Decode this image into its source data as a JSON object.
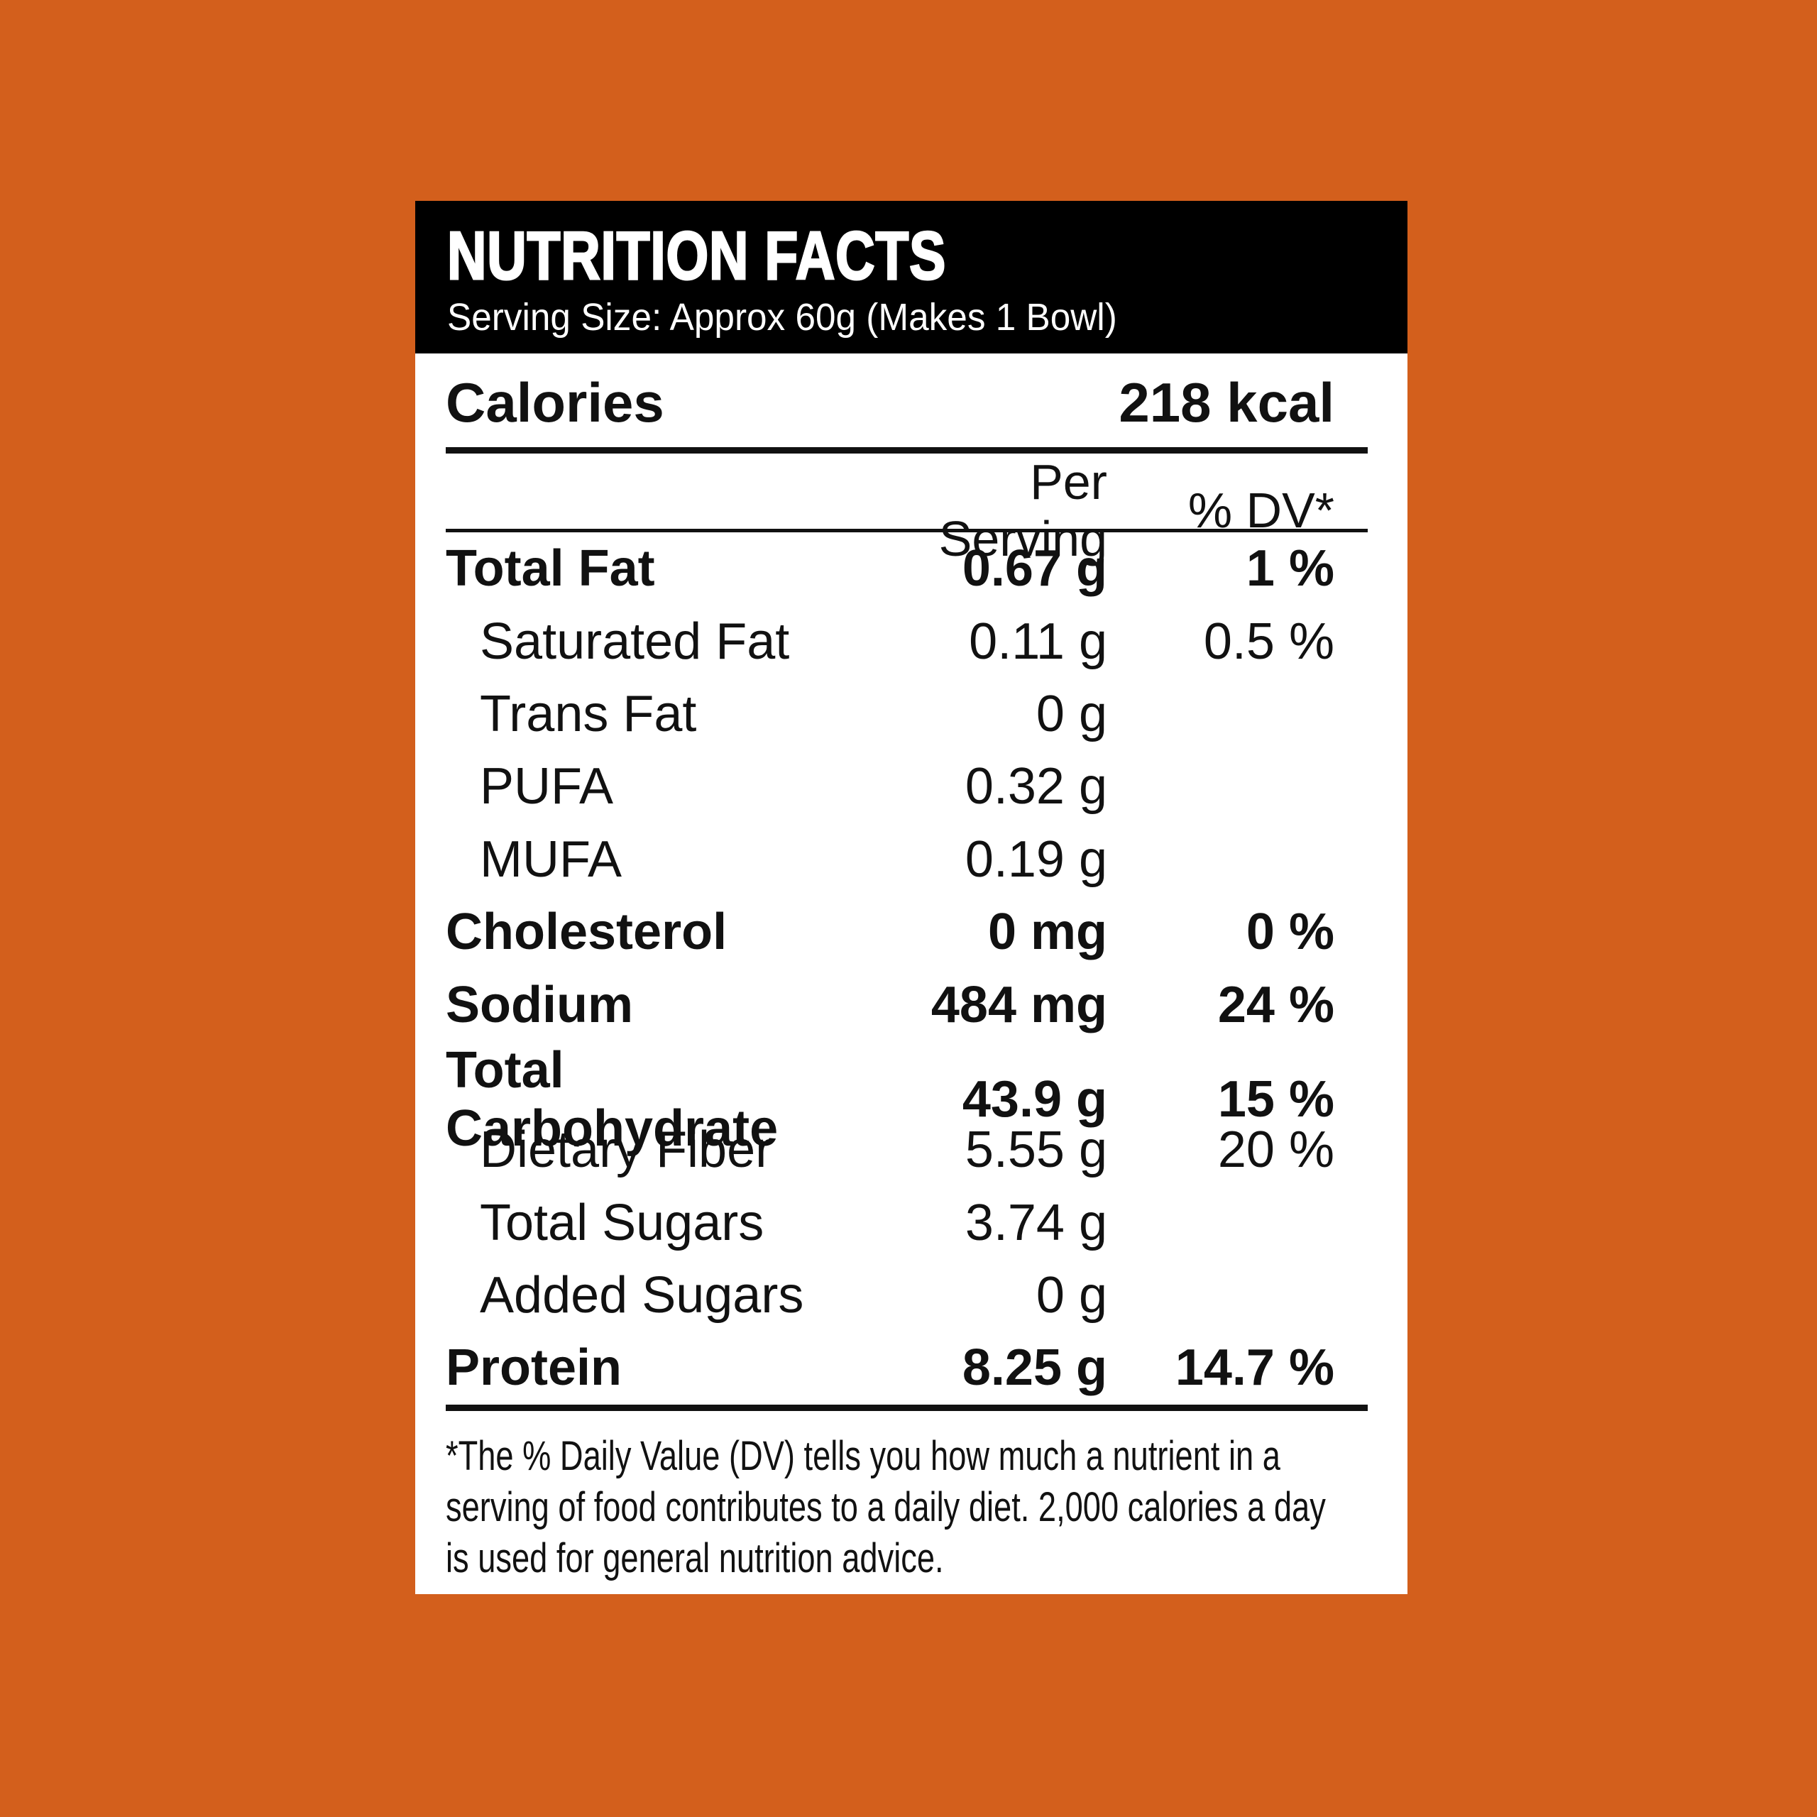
{
  "colors": {
    "background": "#D35F1C",
    "header_bg": "#000000",
    "header_text": "#FFFFFF",
    "body_bg": "#FFFFFF",
    "body_text": "#111111"
  },
  "label": {
    "header": {
      "title": "NUTRITION FACTS",
      "serving_size": "Serving Size: Approx 60g (Makes 1 Bowl)"
    },
    "calories": {
      "label": "Calories",
      "value": "218 kcal"
    },
    "columns": {
      "per_serving": "Per Serving",
      "daily_value": "% DV*"
    },
    "rows": [
      {
        "name": "Total Fat",
        "amount": "0.67 g",
        "dv": "1 %",
        "bold": true,
        "indent": false
      },
      {
        "name": "Saturated Fat",
        "amount": "0.11 g",
        "dv": "0.5 %",
        "bold": false,
        "indent": true
      },
      {
        "name": "Trans Fat",
        "amount": "0 g",
        "dv": "",
        "bold": false,
        "indent": true
      },
      {
        "name": "PUFA",
        "amount": "0.32 g",
        "dv": "",
        "bold": false,
        "indent": true
      },
      {
        "name": "MUFA",
        "amount": "0.19 g",
        "dv": "",
        "bold": false,
        "indent": true
      },
      {
        "name": "Cholesterol",
        "amount": "0 mg",
        "dv": "0 %",
        "bold": true,
        "indent": false
      },
      {
        "name": "Sodium",
        "amount": "484 mg",
        "dv": "24 %",
        "bold": true,
        "indent": false
      },
      {
        "name": "Total Carbohydrate",
        "amount": "43.9 g",
        "dv": "15 %",
        "bold": true,
        "indent": false
      },
      {
        "name": "Dietary Fiber",
        "amount": "5.55 g",
        "dv": "20 %",
        "bold": false,
        "indent": true
      },
      {
        "name": "Total Sugars",
        "amount": "3.74 g",
        "dv": "",
        "bold": false,
        "indent": true
      },
      {
        "name": "Added Sugars",
        "amount": "0 g",
        "dv": "",
        "bold": false,
        "indent": true
      },
      {
        "name": "Protein",
        "amount": "8.25 g",
        "dv": "14.7 %",
        "bold": true,
        "indent": false
      }
    ],
    "footnote_lines": [
      "*The % Daily Value (DV) tells you how much a nutrient in a",
      "serving of food contributes to a daily diet. 2,000 calories a day",
      "is used for general nutrition advice."
    ]
  }
}
